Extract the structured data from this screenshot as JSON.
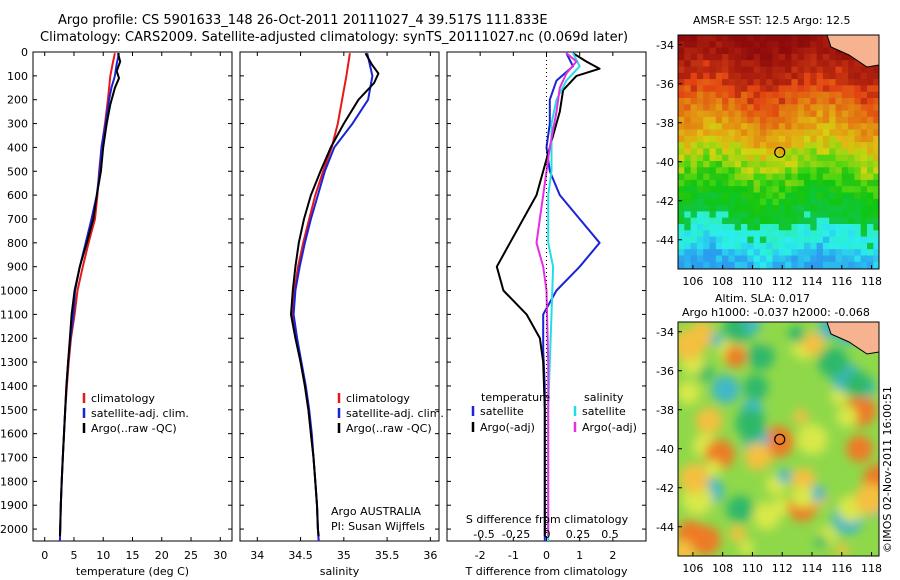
{
  "header": {
    "title_line1": "Argo profile: CS 5901633_148 26-Oct-2011 20111027_4 39.517S 111.833E",
    "title_line2": "Climatology: CARS2009. Satellite-adjusted climatology: synTS_20111027.nc (0.069d later)"
  },
  "depth_ticks": [
    "0",
    "100",
    "200",
    "300",
    "400",
    "500",
    "600",
    "700",
    "800",
    "900",
    "1000",
    "1100",
    "1200",
    "1300",
    "1400",
    "1500",
    "1600",
    "1700",
    "1800",
    "1900",
    "2000"
  ],
  "colors": {
    "climatology": "#e8171a",
    "satellite": "#1a24d6",
    "argo": "#000000",
    "sat_salinity": "#22dde8",
    "argo_salinity": "#e52fe0"
  },
  "chart_data": [
    {
      "id": "temperature",
      "type": "line",
      "xlabel": "temperature (deg C)",
      "x_ticks": [
        "0",
        "5",
        "10",
        "15",
        "20",
        "25",
        "30"
      ],
      "xlim": [
        -2,
        32
      ],
      "ylim": [
        2050,
        0
      ],
      "legend": {
        "placement": "lower-middle",
        "items": [
          "climatology",
          "satellite-adj. clim.",
          "Argo(..raw -QC)"
        ]
      },
      "series": [
        {
          "name": "climatology",
          "color": "#e8171a",
          "points": [
            [
              12.0,
              5
            ],
            [
              11.6,
              50
            ],
            [
              11.2,
              100
            ],
            [
              11.0,
              150
            ],
            [
              10.8,
              200
            ],
            [
              10.3,
              300
            ],
            [
              9.7,
              400
            ],
            [
              9.3,
              500
            ],
            [
              9.0,
              600
            ],
            [
              8.6,
              700
            ],
            [
              7.5,
              800
            ],
            [
              6.5,
              900
            ],
            [
              5.6,
              1000
            ],
            [
              5.1,
              1100
            ],
            [
              4.5,
              1200
            ],
            [
              4.1,
              1300
            ],
            [
              3.8,
              1400
            ],
            [
              3.5,
              1500
            ],
            [
              3.3,
              1600
            ],
            [
              3.1,
              1700
            ],
            [
              2.9,
              1800
            ],
            [
              2.75,
              1900
            ],
            [
              2.65,
              2000
            ],
            [
              2.6,
              2050
            ]
          ]
        },
        {
          "name": "satellite-adj. clim.",
          "color": "#1a24d6",
          "points": [
            [
              12.7,
              5
            ],
            [
              12.3,
              50
            ],
            [
              12.0,
              100
            ],
            [
              11.4,
              150
            ],
            [
              11.0,
              200
            ],
            [
              10.4,
              300
            ],
            [
              9.7,
              400
            ],
            [
              9.4,
              500
            ],
            [
              8.9,
              600
            ],
            [
              8.0,
              700
            ],
            [
              7.0,
              800
            ],
            [
              6.0,
              900
            ],
            [
              5.2,
              1000
            ],
            [
              4.9,
              1100
            ],
            [
              4.4,
              1200
            ],
            [
              4.0,
              1300
            ],
            [
              3.7,
              1400
            ],
            [
              3.5,
              1500
            ],
            [
              3.3,
              1600
            ],
            [
              3.1,
              1700
            ],
            [
              2.9,
              1800
            ],
            [
              2.75,
              1900
            ],
            [
              2.65,
              2000
            ],
            [
              2.6,
              2050
            ]
          ]
        },
        {
          "name": "Argo(..raw -QC)",
          "color": "#000000",
          "points": [
            [
              12.5,
              5
            ],
            [
              12.9,
              40
            ],
            [
              12.3,
              80
            ],
            [
              12.7,
              110
            ],
            [
              12.0,
              150
            ],
            [
              11.2,
              220
            ],
            [
              10.6,
              300
            ],
            [
              10.0,
              400
            ],
            [
              9.6,
              500
            ],
            [
              8.9,
              600
            ],
            [
              8.3,
              700
            ],
            [
              7.2,
              800
            ],
            [
              6.0,
              900
            ],
            [
              5.1,
              1000
            ],
            [
              4.6,
              1100
            ],
            [
              4.3,
              1200
            ],
            [
              4.0,
              1300
            ],
            [
              3.7,
              1400
            ],
            [
              3.5,
              1500
            ],
            [
              3.3,
              1600
            ],
            [
              3.1,
              1700
            ],
            [
              2.9,
              1800
            ],
            [
              2.75,
              1900
            ],
            [
              2.65,
              2000
            ],
            [
              2.6,
              2030
            ]
          ]
        }
      ]
    },
    {
      "id": "salinity",
      "type": "line",
      "xlabel": "salinity",
      "x_ticks": [
        "34",
        "34.5",
        "35",
        "35.5",
        "36"
      ],
      "xlim": [
        33.8,
        36.1
      ],
      "ylim": [
        2050,
        0
      ],
      "legend": {
        "placement": "lower-right",
        "items": [
          "climatology",
          "satellite-adj. clim.",
          "Argo(..raw -QC)"
        ]
      },
      "annotation": [
        "Argo AUSTRALIA",
        "PI: Susan Wijffels"
      ],
      "series": [
        {
          "name": "climatology",
          "color": "#e8171a",
          "points": [
            [
              35.07,
              5
            ],
            [
              35.03,
              100
            ],
            [
              34.98,
              200
            ],
            [
              34.93,
              300
            ],
            [
              34.86,
              400
            ],
            [
              34.76,
              500
            ],
            [
              34.67,
              600
            ],
            [
              34.6,
              700
            ],
            [
              34.53,
              800
            ],
            [
              34.47,
              900
            ],
            [
              34.43,
              1000
            ],
            [
              34.41,
              1100
            ],
            [
              34.45,
              1200
            ],
            [
              34.5,
              1300
            ],
            [
              34.55,
              1400
            ],
            [
              34.59,
              1500
            ],
            [
              34.62,
              1600
            ],
            [
              34.65,
              1700
            ],
            [
              34.67,
              1800
            ],
            [
              34.69,
              1900
            ],
            [
              34.7,
              2000
            ],
            [
              34.71,
              2050
            ]
          ]
        },
        {
          "name": "satellite-adj. clim.",
          "color": "#1a24d6",
          "points": [
            [
              35.27,
              5
            ],
            [
              35.33,
              100
            ],
            [
              35.28,
              200
            ],
            [
              35.1,
              300
            ],
            [
              34.89,
              400
            ],
            [
              34.78,
              500
            ],
            [
              34.7,
              600
            ],
            [
              34.62,
              700
            ],
            [
              34.55,
              800
            ],
            [
              34.49,
              900
            ],
            [
              34.44,
              1000
            ],
            [
              34.42,
              1100
            ],
            [
              34.46,
              1200
            ],
            [
              34.51,
              1300
            ],
            [
              34.56,
              1400
            ],
            [
              34.6,
              1500
            ],
            [
              34.63,
              1600
            ],
            [
              34.65,
              1700
            ],
            [
              34.67,
              1800
            ],
            [
              34.69,
              1900
            ],
            [
              34.7,
              2000
            ],
            [
              34.71,
              2050
            ]
          ]
        },
        {
          "name": "Argo(..raw -QC)",
          "color": "#000000",
          "points": [
            [
              35.25,
              5
            ],
            [
              35.32,
              50
            ],
            [
              35.4,
              90
            ],
            [
              35.35,
              130
            ],
            [
              35.17,
              200
            ],
            [
              35.0,
              300
            ],
            [
              34.85,
              400
            ],
            [
              34.73,
              500
            ],
            [
              34.62,
              600
            ],
            [
              34.54,
              700
            ],
            [
              34.48,
              800
            ],
            [
              34.44,
              900
            ],
            [
              34.41,
              1000
            ],
            [
              34.39,
              1100
            ],
            [
              34.44,
              1200
            ],
            [
              34.5,
              1300
            ],
            [
              34.55,
              1400
            ],
            [
              34.59,
              1500
            ],
            [
              34.62,
              1600
            ],
            [
              34.65,
              1700
            ],
            [
              34.67,
              1800
            ],
            [
              34.69,
              1900
            ],
            [
              34.7,
              2000
            ],
            [
              34.71,
              2030
            ]
          ]
        }
      ]
    },
    {
      "id": "difference",
      "type": "line",
      "xlabel": "T difference from climatology",
      "x_ticks": [
        "-2",
        "-1",
        "0",
        "1",
        "2"
      ],
      "xlabel_top": "S difference from climatology",
      "x_ticks_top": [
        "-0.5",
        "-0.25",
        "0",
        "0.25",
        "0.5"
      ],
      "xlim": [
        -3,
        3
      ],
      "ylim": [
        2050,
        0
      ],
      "legend": {
        "placement": "lower-middle",
        "temperature_title": "temperature",
        "salinity_title": "salinity",
        "items": [
          "satellite",
          "Argo(-adj)",
          "satellite",
          "Argo(-adj)"
        ]
      },
      "series": [
        {
          "name": "temperature satellite",
          "color": "#1a24d6",
          "points": [
            [
              0.6,
              5
            ],
            [
              0.8,
              60
            ],
            [
              0.3,
              120
            ],
            [
              0.1,
              200
            ],
            [
              0.1,
              300
            ],
            [
              0.0,
              400
            ],
            [
              0.1,
              500
            ],
            [
              0.4,
              600
            ],
            [
              1.0,
              700
            ],
            [
              1.6,
              800
            ],
            [
              1.0,
              900
            ],
            [
              0.3,
              1000
            ],
            [
              -0.1,
              1100
            ],
            [
              -0.1,
              1250
            ],
            [
              -0.05,
              1400
            ],
            [
              -0.05,
              1700
            ],
            [
              -0.05,
              2050
            ]
          ]
        },
        {
          "name": "temperature Argo(-adj)",
          "color": "#000000",
          "points": [
            [
              0.8,
              5
            ],
            [
              1.2,
              40
            ],
            [
              1.6,
              70
            ],
            [
              0.9,
              100
            ],
            [
              0.5,
              160
            ],
            [
              0.4,
              250
            ],
            [
              0.2,
              350
            ],
            [
              0.0,
              450
            ],
            [
              -0.3,
              600
            ],
            [
              -1.1,
              800
            ],
            [
              -1.5,
              900
            ],
            [
              -1.3,
              1000
            ],
            [
              -0.6,
              1100
            ],
            [
              -0.2,
              1200
            ],
            [
              -0.1,
              1300
            ],
            [
              -0.05,
              1500
            ],
            [
              -0.05,
              1800
            ],
            [
              -0.05,
              2030
            ]
          ]
        },
        {
          "name": "salinity satellite",
          "color": "#22dde8",
          "points": [
            [
              0.8,
              5
            ],
            [
              1.0,
              60
            ],
            [
              0.6,
              120
            ],
            [
              0.3,
              200
            ],
            [
              0.15,
              300
            ],
            [
              0.15,
              500
            ],
            [
              0.05,
              600
            ],
            [
              0.05,
              800
            ],
            [
              0.2,
              900
            ],
            [
              0.15,
              1100
            ],
            [
              0.1,
              1300
            ],
            [
              0.05,
              1500
            ],
            [
              0.05,
              2050
            ]
          ]
        },
        {
          "name": "salinity Argo(-adj)",
          "color": "#e52fe0",
          "points": [
            [
              0.6,
              5
            ],
            [
              0.9,
              40
            ],
            [
              0.6,
              90
            ],
            [
              0.4,
              150
            ],
            [
              0.3,
              250
            ],
            [
              0.1,
              400
            ],
            [
              -0.1,
              600
            ],
            [
              -0.3,
              800
            ],
            [
              -0.1,
              900
            ],
            [
              0.0,
              1000
            ],
            [
              0.05,
              1300
            ],
            [
              0.05,
              1600
            ],
            [
              0.05,
              2030
            ]
          ]
        }
      ]
    },
    {
      "id": "sst_map",
      "type": "heatmap",
      "title": "AMSR-E SST: 12.5 Argo: 12.5",
      "x_ticks": [
        "106",
        "108",
        "110",
        "112",
        "114",
        "116",
        "118"
      ],
      "y_ticks": [
        "-34",
        "-36",
        "-38",
        "-40",
        "-42",
        "-44"
      ],
      "xlim": [
        105,
        118.5
      ],
      "ylim": [
        -45.5,
        -33.5
      ],
      "marker": {
        "lon": 111.833,
        "lat": -39.517
      }
    },
    {
      "id": "sla_map",
      "type": "heatmap",
      "title_line1": "Altim. SLA: 0.017",
      "title_line2": "Argo h1000: -0.037 h2000: -0.068",
      "x_ticks": [
        "106",
        "108",
        "110",
        "112",
        "114",
        "116",
        "118"
      ],
      "y_ticks": [
        "-34",
        "-36",
        "-38",
        "-40",
        "-42",
        "-44"
      ],
      "xlim": [
        105,
        118.5
      ],
      "ylim": [
        -45.5,
        -33.5
      ],
      "marker": {
        "lon": 111.833,
        "lat": -39.517
      }
    }
  ],
  "footer": {
    "credit": "©IMOS 02-Nov-2011 16:00:51"
  }
}
